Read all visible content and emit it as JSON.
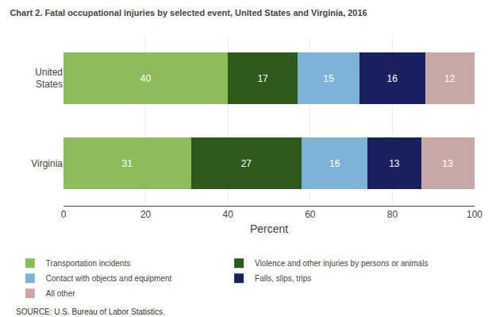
{
  "chart_data": {
    "type": "bar",
    "orientation": "horizontal",
    "stacked": true,
    "data_labels": true,
    "title": "Chart 2. Fatal occupational injuries by selected event, United States and Virginia, 2016",
    "categories": [
      "United\nStates",
      "Virginia"
    ],
    "series": [
      {
        "name": "Transportation incidents",
        "color": "#8fbc5a",
        "values": [
          40,
          31
        ]
      },
      {
        "name": "Violence and other injuries by persons or animals",
        "color": "#2d5a1b",
        "values": [
          17,
          27
        ]
      },
      {
        "name": "Contact with objects and equipment",
        "color": "#7eb3d8",
        "values": [
          15,
          16
        ]
      },
      {
        "name": "Falls, slips, trips",
        "color": "#1a1f5e",
        "values": [
          16,
          13
        ]
      },
      {
        "name": "All other",
        "color": "#c9a9a6",
        "values": [
          12,
          13
        ]
      }
    ],
    "xlabel": "Percent",
    "xlim": [
      0,
      100
    ],
    "xticks": [
      0,
      20,
      40,
      60,
      80,
      100
    ],
    "grid": true,
    "annotations": [
      "SOURCE: U.S. Bureau of Labor Statistics."
    ]
  }
}
